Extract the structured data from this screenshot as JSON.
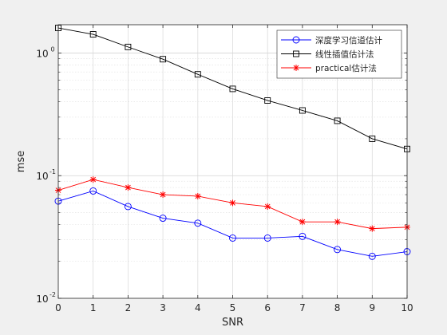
{
  "chart_data": {
    "type": "line",
    "xlabel": "SNR",
    "ylabel": "mse",
    "xlim": [
      0,
      10
    ],
    "ylim": [
      0.01,
      1.7
    ],
    "yscale": "log",
    "grid": true,
    "legend_position": "top-right",
    "x_ticks": [
      "0",
      "1",
      "2",
      "3",
      "4",
      "5",
      "6",
      "7",
      "8",
      "9",
      "10"
    ],
    "y_ticks": [
      {
        "value": 0.01,
        "base": "10",
        "exp": "-2"
      },
      {
        "value": 0.1,
        "base": "10",
        "exp": "-1"
      },
      {
        "value": 1,
        "base": "10",
        "exp": "0"
      }
    ],
    "x": [
      0,
      1,
      2,
      3,
      4,
      5,
      6,
      7,
      8,
      9,
      10
    ],
    "series": [
      {
        "name": "深度学习信道估计",
        "marker": "circle",
        "color": "#0000ff",
        "values": [
          0.062,
          0.075,
          0.056,
          0.045,
          0.041,
          0.031,
          0.031,
          0.032,
          0.025,
          0.022,
          0.024
        ]
      },
      {
        "name": "线性插值估计法",
        "marker": "square",
        "color": "#000000",
        "values": [
          1.6,
          1.42,
          1.12,
          0.89,
          0.67,
          0.51,
          0.41,
          0.34,
          0.28,
          0.2,
          0.165
        ]
      },
      {
        "name": "practical估计法",
        "marker": "asterisk",
        "color": "#ff0000",
        "values": [
          0.076,
          0.093,
          0.08,
          0.07,
          0.068,
          0.06,
          0.056,
          0.042,
          0.042,
          0.037,
          0.038
        ]
      }
    ]
  }
}
